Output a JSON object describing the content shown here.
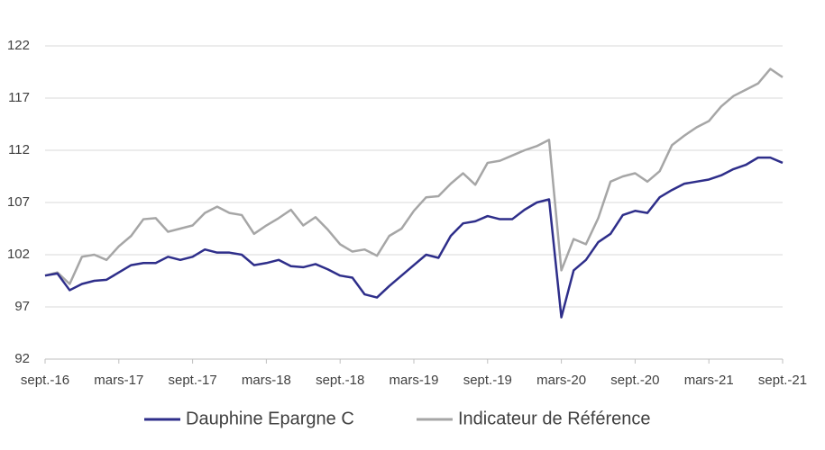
{
  "chart_data": {
    "type": "line",
    "categories": [
      "sept.-16",
      null,
      null,
      null,
      null,
      null,
      "mars-17",
      null,
      null,
      null,
      null,
      null,
      "sept.-17",
      null,
      null,
      null,
      null,
      null,
      "mars-18",
      null,
      null,
      null,
      null,
      null,
      "sept.-18",
      null,
      null,
      null,
      null,
      null,
      "mars-19",
      null,
      null,
      null,
      null,
      null,
      "sept.-19",
      null,
      null,
      null,
      null,
      null,
      "mars-20",
      null,
      null,
      null,
      null,
      null,
      "sept.-20",
      null,
      null,
      null,
      null,
      null,
      "mars-21",
      null,
      null,
      null,
      null,
      null,
      "sept.-21"
    ],
    "series": [
      {
        "name": "Dauphine Epargne C",
        "color": "#2e2e8a",
        "values": [
          100.0,
          100.2,
          98.6,
          99.2,
          99.5,
          99.6,
          100.3,
          101.0,
          101.2,
          101.2,
          101.8,
          101.5,
          101.8,
          102.5,
          102.2,
          102.2,
          102.0,
          101.0,
          101.2,
          101.5,
          100.9,
          100.8,
          101.1,
          100.6,
          100.0,
          99.8,
          98.2,
          97.9,
          99.0,
          100.0,
          101.0,
          102.0,
          101.7,
          103.8,
          105.0,
          105.2,
          105.7,
          105.4,
          105.4,
          106.3,
          107.0,
          107.3,
          96.0,
          100.5,
          101.5,
          103.2,
          104.0,
          105.8,
          106.2,
          106.0,
          107.5,
          108.2,
          108.8,
          109.0,
          109.2,
          109.6,
          110.2,
          110.6,
          111.3,
          111.3,
          110.8
        ]
      },
      {
        "name": "Indicateur de Référence",
        "color": "#a6a6a6",
        "values": [
          100.0,
          100.3,
          99.2,
          101.8,
          102.0,
          101.5,
          102.8,
          103.8,
          105.4,
          105.5,
          104.2,
          104.5,
          104.8,
          106.0,
          106.6,
          106.0,
          105.8,
          104.0,
          104.8,
          105.5,
          106.3,
          104.8,
          105.6,
          104.4,
          103.0,
          102.3,
          102.5,
          101.9,
          103.8,
          104.5,
          106.2,
          107.5,
          107.6,
          108.8,
          109.8,
          108.7,
          110.8,
          111.0,
          111.5,
          112.0,
          112.4,
          113.0,
          100.5,
          103.5,
          103.0,
          105.5,
          109.0,
          109.5,
          109.8,
          109.0,
          110.0,
          112.5,
          113.4,
          114.2,
          114.8,
          116.2,
          117.2,
          117.8,
          118.4,
          119.8,
          119.0
        ]
      }
    ],
    "ylim": [
      92,
      122
    ],
    "yticks": [
      92,
      97,
      102,
      107,
      112,
      117,
      122
    ],
    "grid": true,
    "legend": "bottom"
  }
}
